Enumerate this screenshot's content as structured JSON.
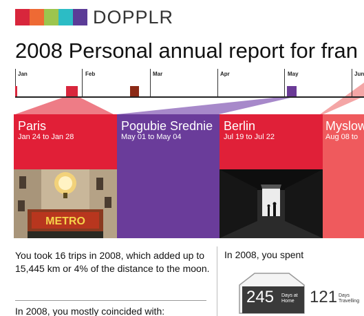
{
  "header": {
    "logo_text": "DOPPLR",
    "logo_colors": [
      "#d8263c",
      "#ee6a34",
      "#f3a93a",
      "#9cc54e",
      "#2cbcc5",
      "#2870b8",
      "#5b3c97"
    ]
  },
  "page_title": "2008 Personal annual report for fran",
  "timeline": {
    "months": [
      "Jan",
      "Feb",
      "Mar",
      "Apr",
      "May",
      "Jun"
    ],
    "marks": [
      {
        "color": "#d8263c"
      },
      {
        "color": "#d8263c"
      },
      {
        "color": "#8b2a16"
      },
      {
        "color": "#6a3a96"
      },
      {
        "color": "#e8384a"
      }
    ]
  },
  "trips": [
    {
      "city": "Paris",
      "dates": "Jan 24 to Jan 28",
      "color": "#e11f37",
      "photo_sign": "METRO"
    },
    {
      "city": "Pogubie Srednie",
      "dates": "May 01 to May 04",
      "color": "#6a3c9a"
    },
    {
      "city": "Berlin",
      "dates": "Jul 19 to Jul 22",
      "color": "#e02038"
    },
    {
      "city": "Myslow",
      "dates": "Aug 08 to",
      "color": "#ef5a5d"
    }
  ],
  "stats": {
    "summary": "You took 16 trips in 2008, which added up to 15,445 km or 4% of the distance to the moon.",
    "coincided": "In 2008, you mostly coincided with:",
    "spent": "In 2008, you spent",
    "days_home": "245",
    "days_home_label_1": "Days at",
    "days_home_label_2": "Home",
    "days_travel": "121",
    "days_travel_label_1": "Days",
    "days_travel_label_2": "Travelling"
  }
}
